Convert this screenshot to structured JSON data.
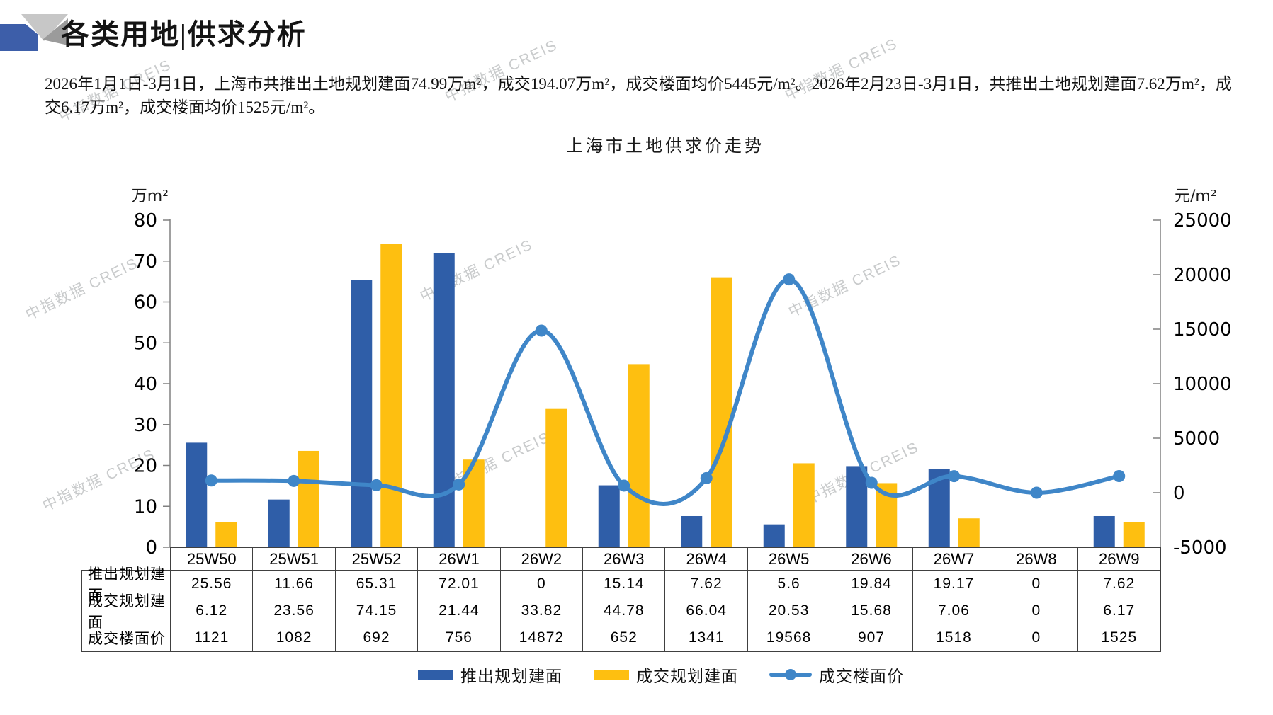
{
  "header": {
    "title": "各类用地|供求分析"
  },
  "intro": {
    "text": "2026年1月1日-3月1日，上海市共推出土地规划建面74.99万m²，成交194.07万m²，成交楼面均价5445元/m²。2026年2月23日-3月1日，共推出土地规划建面7.62万m²，成交6.17万m²，成交楼面均价1525元/m²。"
  },
  "watermark": {
    "text": "中指数据 CREIS"
  },
  "colors": {
    "bar_supply": "#2F5EA8",
    "bar_deal": "#FEBF10",
    "line_price": "#3F86C8",
    "axis": "#808080",
    "table_border": "#404040",
    "logo_blue": "#3D5EA9",
    "logo_light_gray": "#C7C7C7",
    "logo_dark_gray": "#9B9B9B"
  },
  "chart_data": {
    "type": "bar",
    "title": "上海市土地供求价走势",
    "categories": [
      "25W50",
      "25W51",
      "25W52",
      "26W1",
      "26W2",
      "26W3",
      "26W4",
      "26W5",
      "26W6",
      "26W7",
      "26W8",
      "26W9"
    ],
    "series": [
      {
        "name": "推出规划建面",
        "type": "bar",
        "axis": "left",
        "color": "#2F5EA8",
        "values": [
          25.56,
          11.66,
          65.31,
          72.01,
          0,
          15.14,
          7.62,
          5.6,
          19.84,
          19.17,
          0,
          7.62
        ]
      },
      {
        "name": "成交规划建面",
        "type": "bar",
        "axis": "left",
        "color": "#FEBF10",
        "values": [
          6.12,
          23.56,
          74.15,
          21.44,
          33.82,
          44.78,
          66.04,
          20.53,
          15.68,
          7.06,
          0,
          6.17
        ]
      },
      {
        "name": "成交楼面价",
        "type": "line",
        "axis": "right",
        "color": "#3F86C8",
        "values": [
          1121,
          1082,
          692,
          756,
          14872,
          652,
          1341,
          19568,
          907,
          1518,
          0,
          1525
        ]
      }
    ],
    "left_axis": {
      "unit": "万m²",
      "min": 0,
      "max": 80,
      "step": 10
    },
    "right_axis": {
      "unit": "元/m²",
      "min": -5000,
      "max": 25000,
      "step": 5000
    },
    "legend_position": "bottom",
    "grid": false
  }
}
